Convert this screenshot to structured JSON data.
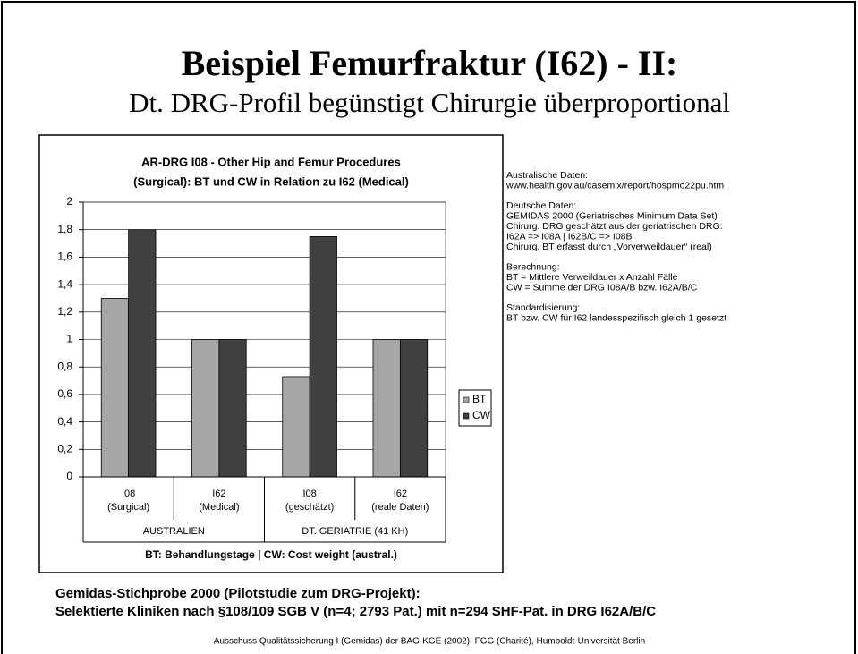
{
  "header": {
    "title": "Beispiel Femurfraktur (I62) - II:",
    "subtitle": "Dt. DRG-Profil begünstigt Chirurgie überproportional"
  },
  "chart_data": {
    "type": "bar",
    "title": [
      "AR-DRG I08 - Other Hip and Femur Procedures",
      "(Surgical): BT und CW in Relation zu I62 (Medical)"
    ],
    "categories": [
      [
        "I08",
        "(Surgical)"
      ],
      [
        "I62",
        "(Medical)"
      ],
      [
        "I08",
        "(geschätzt)"
      ],
      [
        "I62",
        "(reale Daten)"
      ]
    ],
    "groups": [
      "AUSTRALIEN",
      "DT. GERIATRIE (41 KH)"
    ],
    "series": [
      {
        "name": "BT",
        "color": "#a6a6a6",
        "values": [
          1.3,
          1,
          0.73,
          1
        ]
      },
      {
        "name": "CW",
        "color": "#404040",
        "values": [
          1.8,
          1,
          1.75,
          1
        ]
      }
    ],
    "ylim": [
      0,
      2
    ],
    "yticks": [
      0,
      {
        "value": 0.2,
        "label": "0,2"
      },
      {
        "value": 0.4,
        "label": "0,4"
      },
      {
        "value": 0.6,
        "label": "0,6"
      },
      {
        "value": 0.8,
        "label": "0,8"
      },
      1,
      {
        "value": 1.2,
        "label": "1,2"
      },
      {
        "value": 1.4,
        "label": "1,4"
      },
      {
        "value": 1.6,
        "label": "1,6"
      },
      {
        "value": 1.8,
        "label": "1,8"
      },
      2
    ],
    "grid": true,
    "legend": "right",
    "footer": "BT: Behandlungstage  |  CW: Cost weight (austral.)"
  },
  "notes": [
    [
      "Australische Daten:",
      "www.health.gov.au/casemix/report/hospmo22pu.htm"
    ],
    [
      "Deutsche Daten:",
      "GEMIDAS 2000 (Geriatrisches Minimum Data Set)",
      "Chirurg. DRG geschätzt aus der geriatrischen DRG:",
      "I62A => I08A   |   I62B/C => I08B",
      "Chirurg. BT erfasst durch „Vorverweildauer“ (real)"
    ],
    [
      "Berechnung:",
      "BT = Mittlere Verweildauer x Anzahl Fälle",
      "CW = Summe der DRG I08A/B bzw. I62A/B/C"
    ],
    [
      "Standardisierung:",
      "BT bzw. CW für I62 landesspezifisch gleich 1 gesetzt"
    ]
  ],
  "footer": {
    "lines": [
      "Gemidas-Stichprobe 2000 (Pilotstudie zum DRG-Projekt):",
      "Selektierte Kliniken nach §108/109 SGB V (n=4; 2793 Pat.) mit n=294 SHF-Pat. in DRG I62A/B/C"
    ],
    "credit": "Ausschuss Qualitätssicherung I (Gemidas) der BAG-KGE (2002), FGG (Charité), Humboldt-Universität Berlin"
  }
}
